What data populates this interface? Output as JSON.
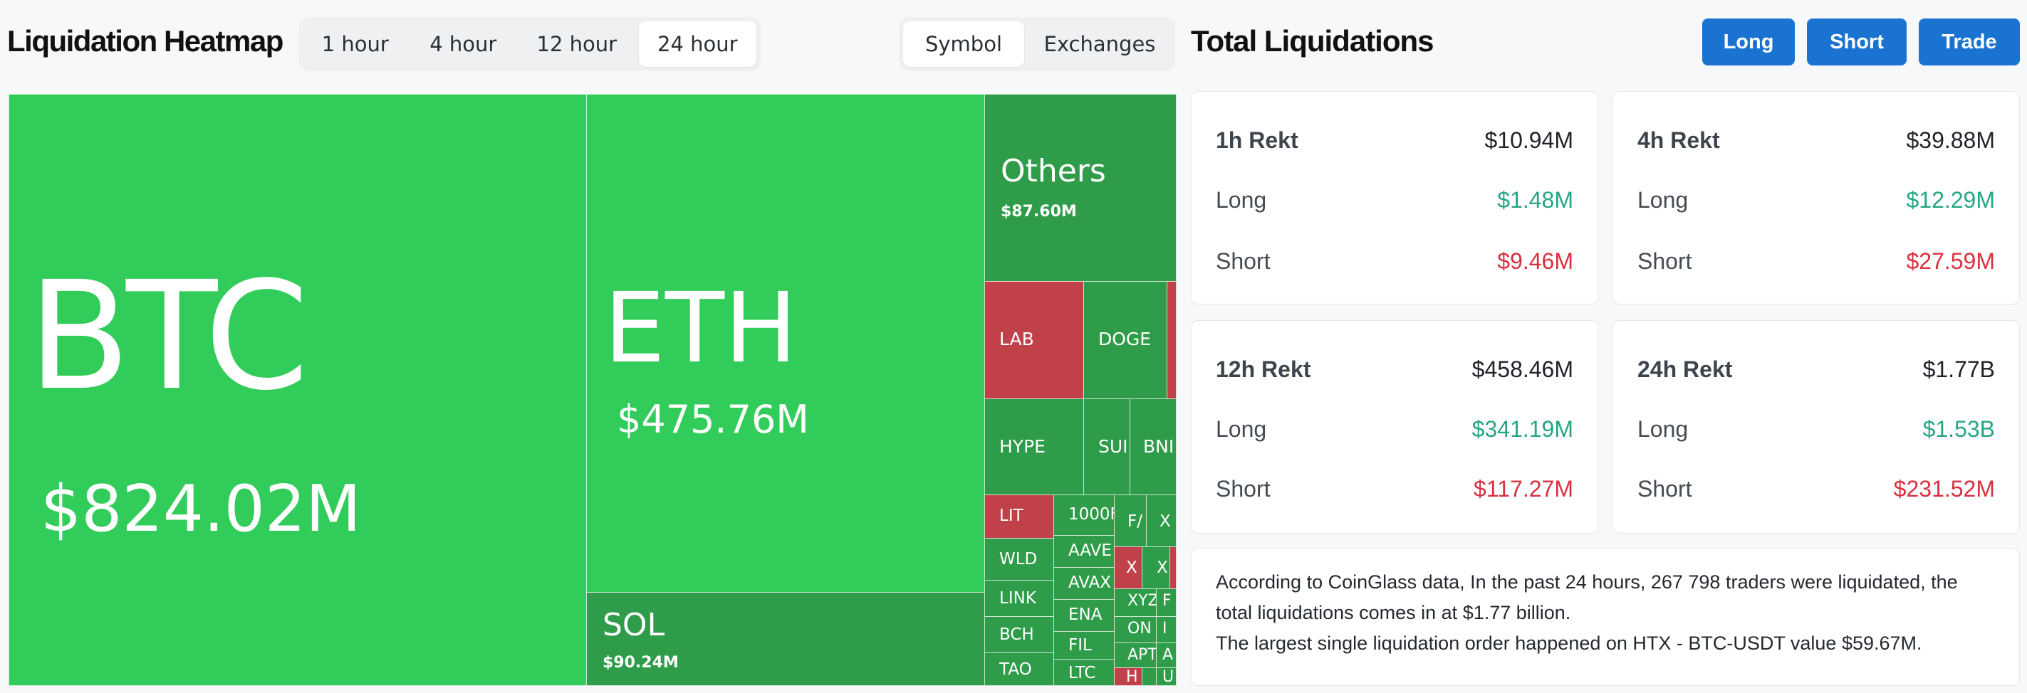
{
  "heatmap_title": "Liquidation Heatmap",
  "time_tabs": [
    "1 hour",
    "4 hour",
    "12 hour",
    "24 hour"
  ],
  "active_time_tab": "24 hour",
  "view_tabs": [
    "Symbol",
    "Exchanges"
  ],
  "active_view_tab": "Symbol",
  "heatmap": {
    "btc": {
      "symbol": "BTC",
      "value": "$824.02M"
    },
    "eth": {
      "symbol": "ETH",
      "value": "$475.76M"
    },
    "sol": {
      "symbol": "SOL",
      "value": "$90.24M"
    },
    "others": {
      "symbol": "Others",
      "value": "$87.60M"
    },
    "small": [
      "LAB",
      "DOGE",
      "HYPE",
      "SUI",
      "BNI",
      "LIT",
      "1000F",
      "F/",
      "X",
      "AAVE",
      "AVAX",
      "X",
      "X",
      "WLD",
      "XYZ",
      "F",
      "ENA",
      "ON",
      "I",
      "LINK",
      "FIL",
      "APT",
      "A",
      "BCH",
      "LTC",
      "H",
      "U",
      "TAO"
    ]
  },
  "total_title": "Total Liquidations",
  "buttons": {
    "long": "Long",
    "short": "Short",
    "trade": "Trade"
  },
  "cards": [
    {
      "title": "1h Rekt",
      "total": "$10.94M",
      "long_label": "Long",
      "long": "$1.48M",
      "short_label": "Short",
      "short": "$9.46M"
    },
    {
      "title": "4h Rekt",
      "total": "$39.88M",
      "long_label": "Long",
      "long": "$12.29M",
      "short_label": "Short",
      "short": "$27.59M"
    },
    {
      "title": "12h Rekt",
      "total": "$458.46M",
      "long_label": "Long",
      "long": "$341.19M",
      "short_label": "Short",
      "short": "$117.27M"
    },
    {
      "title": "24h Rekt",
      "total": "$1.77B",
      "long_label": "Long",
      "long": "$1.53B",
      "short_label": "Short",
      "short": "$231.52M"
    }
  ],
  "summary": {
    "line1": "According to CoinGlass data, In the past 24 hours, 267 798 traders were liquidated, the total liquidations comes in at $1.77 billion.",
    "line2": "The largest single liquidation order happened on HTX - BTC-USDT value $59.67M."
  },
  "colors": {
    "long": "#24a685",
    "short": "#d9303f",
    "accent": "#1a73d1",
    "tile_green_bright": "#32cc5a",
    "tile_green_dark": "#2e9c48",
    "tile_red": "#c1414a"
  }
}
